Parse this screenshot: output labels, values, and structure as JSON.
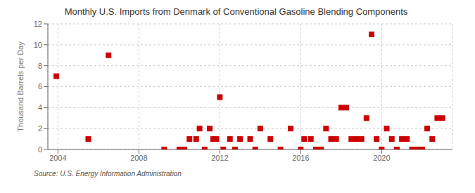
{
  "chart_data": {
    "type": "scatter",
    "title": "Monthly U.S. Imports from Denmark of Conventional Gasoline Blending Components",
    "y_label": "Thousand Barrels per Day",
    "annotations": [
      "Source: U.S. Energy Information Administration"
    ],
    "x": [
      2003.92,
      2005.5,
      2006.5,
      2009.25,
      2010.0,
      2010.25,
      2010.5,
      2010.83,
      2011.0,
      2011.25,
      2011.5,
      2011.67,
      2011.83,
      2012.0,
      2012.17,
      2012.5,
      2012.75,
      2013.0,
      2013.5,
      2013.75,
      2014.0,
      2014.5,
      2015.0,
      2015.5,
      2016.0,
      2016.17,
      2016.5,
      2016.75,
      2017.0,
      2017.25,
      2017.5,
      2017.75,
      2018.0,
      2018.25,
      2018.5,
      2018.75,
      2019.0,
      2019.25,
      2019.5,
      2019.75,
      2020.0,
      2020.25,
      2020.5,
      2020.75,
      2021.0,
      2021.25,
      2021.5,
      2021.75,
      2022.0,
      2022.25,
      2022.5,
      2022.75,
      2023.0
    ],
    "values": [
      7,
      1,
      9,
      0,
      0,
      0,
      1,
      1,
      2,
      0,
      2,
      1,
      1,
      5,
      0,
      1,
      0,
      1,
      1,
      0,
      2,
      1,
      0,
      2,
      0,
      1,
      1,
      0,
      0,
      2,
      1,
      1,
      4,
      4,
      1,
      1,
      1,
      3,
      11,
      1,
      0,
      2,
      1,
      0,
      1,
      1,
      0,
      0,
      0,
      2,
      1,
      3,
      3
    ],
    "color": "#cc0000",
    "marker": "square",
    "xlim": [
      2003.5,
      2023.5
    ],
    "ylim": [
      0,
      12
    ],
    "xticks": [
      2004,
      2008,
      2012,
      2016,
      2020
    ],
    "yticks": [
      0,
      2,
      4,
      6,
      8,
      10,
      12
    ],
    "grid": true
  }
}
